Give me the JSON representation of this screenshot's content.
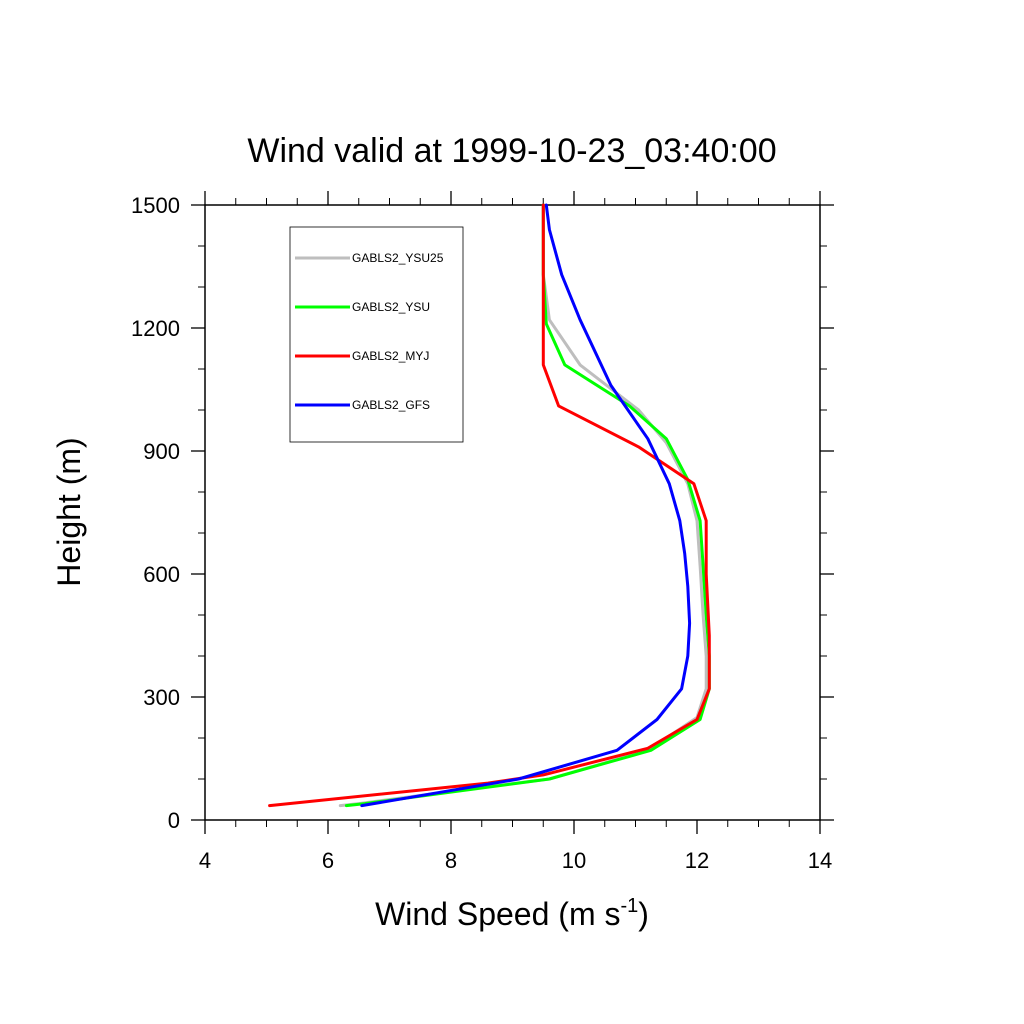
{
  "chart_data": {
    "type": "line",
    "title": "Wind valid at 1999-10-23_03:40:00",
    "xlabel": "Wind Speed (m s",
    "xlabel_superscript": "-1",
    "xlabel_suffix": ")",
    "ylabel": "Height (m)",
    "xlim": [
      4,
      14
    ],
    "ylim": [
      0,
      1500
    ],
    "x_ticks": [
      4,
      6,
      8,
      10,
      12,
      14
    ],
    "y_ticks": [
      0,
      300,
      600,
      900,
      1200,
      1500
    ],
    "grid": false,
    "legend_position": "top-left",
    "series": [
      {
        "name": "GABLS2_YSU25",
        "color": "#bebebe",
        "x": [
          6.2,
          6.5,
          8.0,
          9.6,
          11.2,
          12.0,
          12.15,
          12.15,
          12.1,
          12.05,
          12.0,
          11.85,
          11.5,
          11.05,
          10.1,
          9.6,
          9.5,
          9.5
        ],
        "y": [
          35,
          40,
          70,
          100,
          170,
          250,
          320,
          400,
          500,
          620,
          730,
          820,
          920,
          1000,
          1110,
          1220,
          1330,
          1500
        ]
      },
      {
        "name": "GABLS2_YSU",
        "color": "#00ff00",
        "x": [
          6.3,
          6.6,
          8.1,
          9.6,
          11.25,
          12.05,
          12.2,
          12.2,
          12.15,
          12.1,
          12.05,
          11.85,
          11.5,
          10.9,
          9.85,
          9.55,
          9.5,
          9.5
        ],
        "y": [
          35,
          40,
          70,
          100,
          170,
          245,
          320,
          400,
          500,
          620,
          730,
          830,
          930,
          1010,
          1110,
          1210,
          1330,
          1500
        ]
      },
      {
        "name": "GABLS2_MYJ",
        "color": "#ff0000",
        "x": [
          5.05,
          8.6,
          9.5,
          11.2,
          12.0,
          12.2,
          12.2,
          12.15,
          12.15,
          11.95,
          11.05,
          9.75,
          9.5,
          9.5,
          9.5
        ],
        "y": [
          35,
          90,
          110,
          175,
          245,
          320,
          450,
          600,
          730,
          820,
          910,
          1010,
          1110,
          1250,
          1500
        ]
      },
      {
        "name": "GABLS2_GFS",
        "color": "#0000ff",
        "x": [
          6.55,
          9.1,
          10.7,
          11.35,
          11.75,
          11.85,
          11.88,
          11.85,
          11.8,
          11.72,
          11.55,
          11.2,
          10.6,
          10.1,
          9.8,
          9.6,
          9.55
        ],
        "y": [
          35,
          100,
          170,
          245,
          320,
          400,
          480,
          570,
          650,
          730,
          820,
          930,
          1060,
          1220,
          1330,
          1440,
          1500
        ]
      }
    ]
  }
}
